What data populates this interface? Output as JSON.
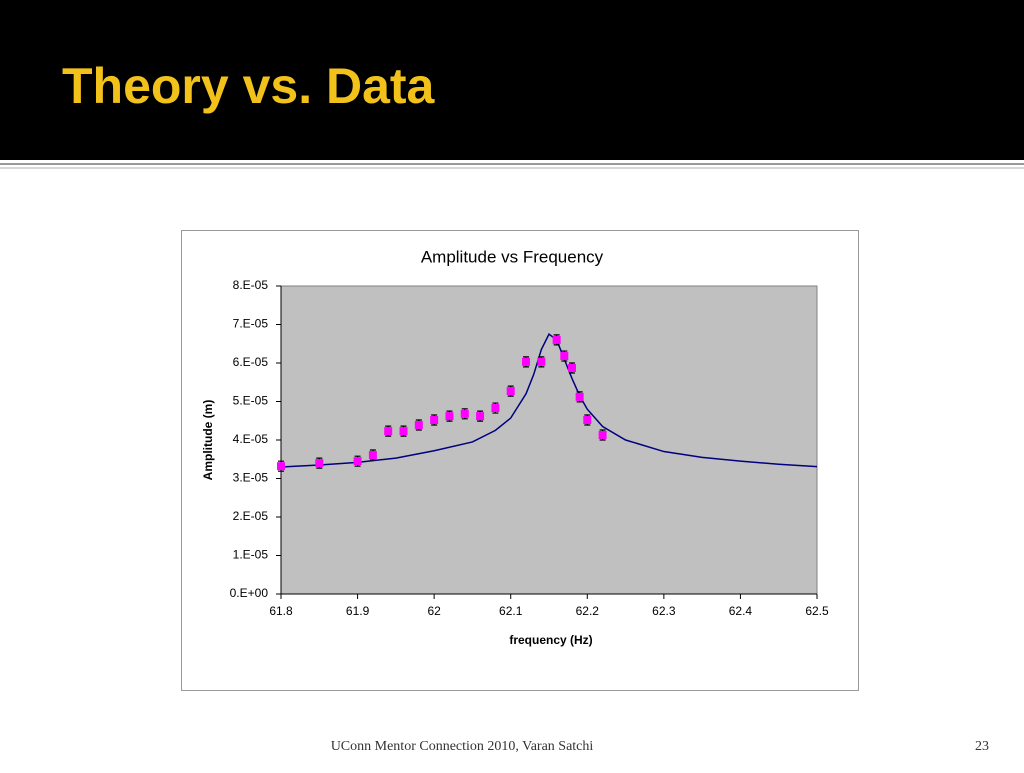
{
  "slide_title": "Theory vs. Data",
  "footer": "UConn Mentor Connection 2010, Varan Satchi",
  "page_number": "23",
  "chart_data": {
    "type": "scatter",
    "title": "Amplitude vs Frequency",
    "x_label": "frequency (Hz)",
    "y_label": "Amplitude (m)",
    "xlim": [
      61.8,
      62.5
    ],
    "xticks": [
      61.8,
      61.9,
      62,
      62.1,
      62.2,
      62.3,
      62.4,
      62.5
    ],
    "ylim": [
      0,
      8e-05
    ],
    "yticks": [
      {
        "value": 0,
        "label": "0.E+00"
      },
      {
        "value": 1e-05,
        "label": "1.E-05"
      },
      {
        "value": 2e-05,
        "label": "2.E-05"
      },
      {
        "value": 3e-05,
        "label": "3.E-05"
      },
      {
        "value": 4e-05,
        "label": "4.E-05"
      },
      {
        "value": 5e-05,
        "label": "5.E-05"
      },
      {
        "value": 6e-05,
        "label": "6.E-05"
      },
      {
        "value": 7e-05,
        "label": "7.E-05"
      },
      {
        "value": 8e-05,
        "label": "8.E-05"
      }
    ],
    "grid": false,
    "series": [
      {
        "mode": "line",
        "color": "#000080",
        "x": [
          61.8,
          61.85,
          61.9,
          61.95,
          62.0,
          62.05,
          62.08,
          62.1,
          62.12,
          62.13,
          62.14,
          62.15,
          62.16,
          62.17,
          62.18,
          62.19,
          62.2,
          62.22,
          62.25,
          62.3,
          62.35,
          62.4,
          62.45,
          62.5
        ],
        "values": [
          3.3e-05,
          3.35e-05,
          3.42e-05,
          3.53e-05,
          3.72e-05,
          3.95e-05,
          4.25e-05,
          4.57e-05,
          5.2e-05,
          5.7e-05,
          6.35e-05,
          6.75e-05,
          6.6e-05,
          6.1e-05,
          5.6e-05,
          5.15e-05,
          4.8e-05,
          4.35e-05,
          4e-05,
          3.7e-05,
          3.55e-05,
          3.45e-05,
          3.37e-05,
          3.31e-05
        ]
      },
      {
        "mode": "markers",
        "color": "#ff00ff",
        "x": [
          61.8,
          61.85,
          61.9,
          61.92,
          61.94,
          61.96,
          61.98,
          62.0,
          62.02,
          62.04,
          62.06,
          62.08,
          62.1,
          62.12,
          62.14,
          62.16,
          62.17,
          62.18,
          62.19,
          62.2,
          62.22
        ],
        "values": [
          3.32e-05,
          3.4e-05,
          3.45e-05,
          3.61e-05,
          4.23e-05,
          4.23e-05,
          4.39e-05,
          4.52e-05,
          4.62e-05,
          4.68e-05,
          4.62e-05,
          4.83e-05,
          5.27e-05,
          6.03e-05,
          6.03e-05,
          6.6e-05,
          6.18e-05,
          5.87e-05,
          5.12e-05,
          4.52e-05,
          4.13e-05
        ],
        "errors": [
          1.3e-06,
          1.3e-06,
          1.3e-06,
          1.3e-06,
          1.3e-06,
          1.3e-06,
          1.3e-06,
          1.3e-06,
          1.3e-06,
          1.3e-06,
          1.3e-06,
          1.3e-06,
          1.3e-06,
          1.3e-06,
          1.3e-06,
          1.3e-06,
          1.3e-06,
          1.3e-06,
          1.3e-06,
          1.3e-06,
          1.3e-06
        ]
      }
    ]
  }
}
